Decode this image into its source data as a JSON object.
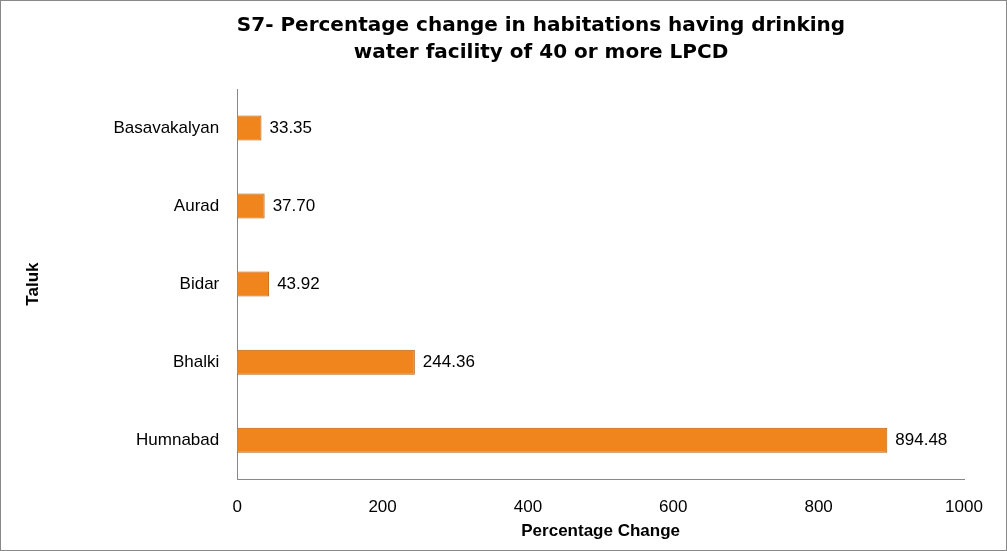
{
  "chart_data": {
    "type": "bar",
    "orientation": "horizontal",
    "title": "S7- Percentage  change in habitations having drinking water facility of 40 or more LPCD",
    "xlabel": "Percentage Change",
    "ylabel": "Taluk",
    "categories": [
      "Basavakalyan",
      "Aurad",
      "Bidar",
      "Bhalki",
      "Humnabad"
    ],
    "values": [
      33.35,
      37.7,
      43.92,
      244.36,
      894.48
    ],
    "value_labels": [
      "33.35",
      "37.70",
      "43.92",
      "244.36",
      "894.48"
    ],
    "color": "#f0851e",
    "xlim": [
      0,
      1000
    ],
    "xticks": [
      0,
      200,
      400,
      600,
      800,
      1000
    ],
    "grid": false,
    "legend": false
  }
}
